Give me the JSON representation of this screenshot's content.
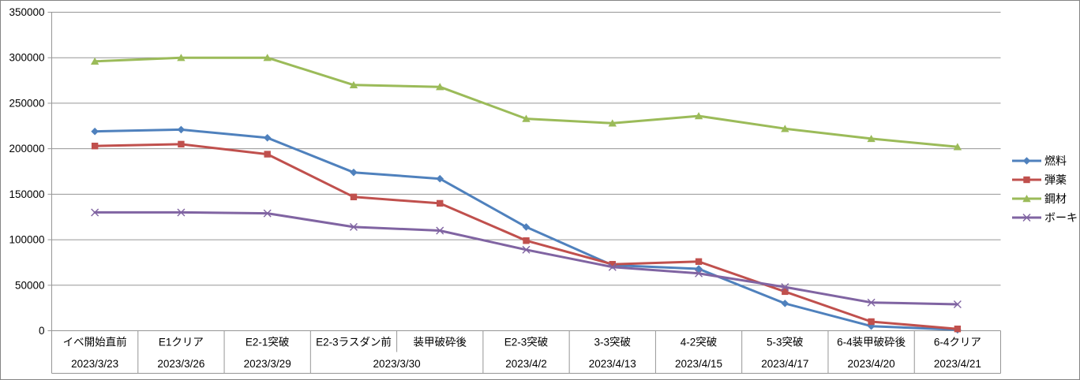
{
  "chart_data": {
    "type": "line",
    "title": "",
    "xlabel": "",
    "ylabel": "",
    "ylim": [
      0,
      350000
    ],
    "ytick_step": 50000,
    "ytick_labels": [
      "0",
      "50000",
      "100000",
      "150000",
      "200000",
      "250000",
      "300000",
      "350000"
    ],
    "grid": true,
    "legend_position": "right",
    "categories": [
      "イベ開始直前",
      "E1クリア",
      "E2-1突破",
      "E2-3ラスダン前",
      "装甲破砕後",
      "E2-3突破",
      "3-3突破",
      "4-2突破",
      "5-3突破",
      "6-4装甲破砕後",
      "6-4クリア"
    ],
    "date_row": [
      {
        "label": "2023/3/23",
        "span": 1
      },
      {
        "label": "2023/3/26",
        "span": 1
      },
      {
        "label": "2023/3/29",
        "span": 1
      },
      {
        "label": "2023/3/30",
        "span": 2
      },
      {
        "label": "2023/4/2",
        "span": 1
      },
      {
        "label": "2023/4/13",
        "span": 1
      },
      {
        "label": "2023/4/15",
        "span": 1
      },
      {
        "label": "2023/4/17",
        "span": 1
      },
      {
        "label": "2023/4/20",
        "span": 1
      },
      {
        "label": "2023/4/21",
        "span": 1
      }
    ],
    "series": [
      {
        "key": "fuel",
        "name": "燃料",
        "color": "#4F81BD",
        "marker": "diamond",
        "values": [
          219000,
          221000,
          212000,
          174000,
          167000,
          114000,
          72000,
          68000,
          30000,
          5000,
          1000
        ]
      },
      {
        "key": "ammo",
        "name": "弾薬",
        "color": "#C0504D",
        "marker": "square",
        "values": [
          203000,
          205000,
          194000,
          147000,
          140000,
          99000,
          73000,
          76000,
          43000,
          10000,
          2000
        ]
      },
      {
        "key": "steel",
        "name": "鋼材",
        "color": "#9BBB59",
        "marker": "triangle",
        "values": [
          296000,
          300000,
          300000,
          270000,
          268000,
          233000,
          228000,
          236000,
          222000,
          211000,
          202000
        ]
      },
      {
        "key": "bauxite",
        "name": "ボーキ",
        "color": "#8064A2",
        "marker": "x",
        "values": [
          130000,
          130000,
          129000,
          114000,
          110000,
          89000,
          70000,
          63000,
          48000,
          31000,
          29000
        ]
      }
    ]
  },
  "colors": {
    "grid": "#969696",
    "axis": "#969696",
    "text": "#000000",
    "border": "#848484",
    "background": "#ffffff"
  }
}
